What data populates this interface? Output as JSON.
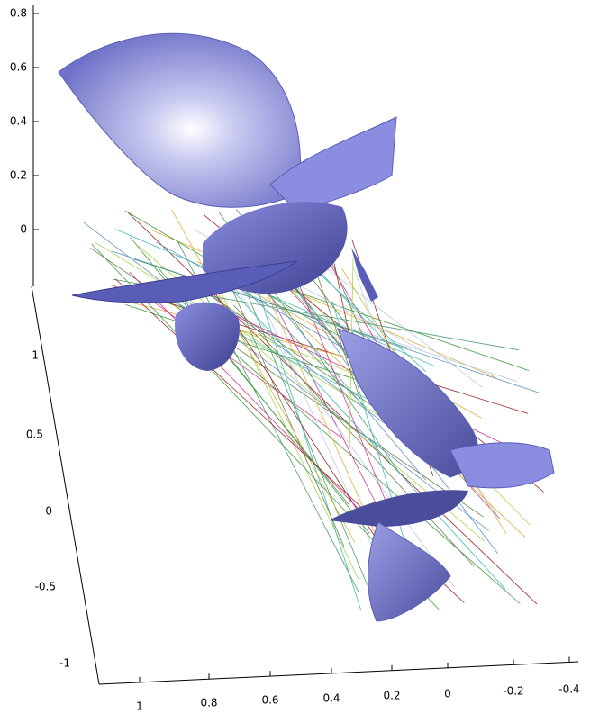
{
  "axes": {
    "z_ticks": [
      "0.8",
      "0.6",
      "0.4",
      "0.2",
      "0"
    ],
    "y_ticks": [
      "1",
      "0.5",
      "0",
      "-0.5",
      "-1"
    ],
    "x_ticks": [
      "1",
      "0.8",
      "0.6",
      "0.4",
      "0.2",
      "0",
      "-0.2",
      "-0.4"
    ]
  }
}
